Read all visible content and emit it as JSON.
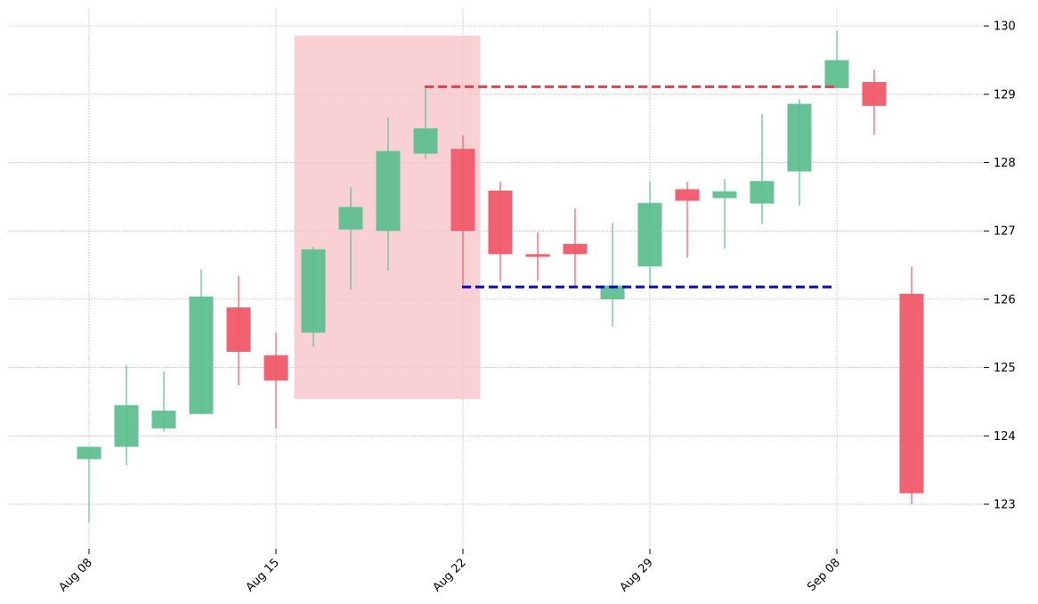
{
  "chart_data": {
    "type": "candlestick",
    "title": "",
    "xlabel": "",
    "ylabel": "",
    "ylim": [
      122.4,
      130.3
    ],
    "grid": true,
    "y_axis_side": "right",
    "x_tick_labels": [
      "Aug 08",
      "Aug 15",
      "Aug 22",
      "Aug 29",
      "Sep 08"
    ],
    "y_ticks": [
      123,
      124,
      125,
      126,
      127,
      128,
      129,
      130
    ],
    "colors": {
      "up": "#5fbf8f",
      "down": "#ef5a6a",
      "highlight": "#f7c6cb",
      "resistance": "#e0404e",
      "support": "#0000dd"
    },
    "candles": [
      {
        "date": "Aug 08",
        "open": 123.66,
        "high": 123.84,
        "low": 122.74,
        "close": 123.84
      },
      {
        "date": "Aug 09",
        "open": 123.84,
        "high": 125.04,
        "low": 123.57,
        "close": 124.45
      },
      {
        "date": "Aug 10",
        "open": 124.11,
        "high": 124.94,
        "low": 124.06,
        "close": 124.37
      },
      {
        "date": "Aug 11",
        "open": 124.32,
        "high": 126.44,
        "low": 124.32,
        "close": 126.04
      },
      {
        "date": "Aug 12",
        "open": 125.88,
        "high": 126.34,
        "low": 124.74,
        "close": 125.23
      },
      {
        "date": "Aug 15",
        "open": 125.18,
        "high": 125.51,
        "low": 124.11,
        "close": 124.81
      },
      {
        "date": "Aug 16",
        "open": 125.51,
        "high": 126.77,
        "low": 125.3,
        "close": 126.73
      },
      {
        "date": "Aug 17",
        "open": 127.02,
        "high": 127.64,
        "low": 126.14,
        "close": 127.35
      },
      {
        "date": "Aug 18",
        "open": 127.0,
        "high": 128.66,
        "low": 126.42,
        "close": 128.17
      },
      {
        "date": "Aug 19",
        "open": 128.13,
        "high": 129.13,
        "low": 128.05,
        "close": 128.5
      },
      {
        "date": "Aug 22",
        "open": 128.2,
        "high": 128.4,
        "low": 126.2,
        "close": 127.0
      },
      {
        "date": "Aug 23",
        "open": 127.59,
        "high": 127.72,
        "low": 126.26,
        "close": 126.66
      },
      {
        "date": "Aug 24",
        "open": 126.66,
        "high": 126.98,
        "low": 126.27,
        "close": 126.62
      },
      {
        "date": "Aug 25",
        "open": 126.81,
        "high": 127.33,
        "low": 126.18,
        "close": 126.66
      },
      {
        "date": "Aug 26",
        "open": 126.0,
        "high": 127.12,
        "low": 125.6,
        "close": 126.2
      },
      {
        "date": "Aug 29",
        "open": 126.48,
        "high": 127.72,
        "low": 126.2,
        "close": 127.41
      },
      {
        "date": "Aug 30",
        "open": 127.61,
        "high": 127.72,
        "low": 126.61,
        "close": 127.44
      },
      {
        "date": "Aug 31",
        "open": 127.48,
        "high": 127.76,
        "low": 126.74,
        "close": 127.58
      },
      {
        "date": "Sep 01",
        "open": 127.4,
        "high": 128.71,
        "low": 127.1,
        "close": 127.73
      },
      {
        "date": "Sep 02",
        "open": 127.87,
        "high": 128.93,
        "low": 127.37,
        "close": 128.86
      },
      {
        "date": "Sep 08",
        "open": 129.09,
        "high": 129.93,
        "low": 129.09,
        "close": 129.5
      },
      {
        "date": "Sep 09",
        "open": 129.18,
        "high": 129.36,
        "low": 128.41,
        "close": 128.83
      },
      {
        "date": "Sep 12",
        "open": 126.08,
        "high": 126.48,
        "low": 123.0,
        "close": 123.16
      }
    ],
    "highlight_range": {
      "from": "Aug 16",
      "to": "Aug 22",
      "y_min": 124.54,
      "y_max": 129.86
    },
    "levels": [
      {
        "name": "resistance",
        "value": 129.11,
        "from": "Aug 19",
        "to": "Sep 08",
        "style": "dashed"
      },
      {
        "name": "support",
        "value": 126.18,
        "from": "Aug 22",
        "to": "Sep 08",
        "style": "dashed"
      }
    ]
  }
}
